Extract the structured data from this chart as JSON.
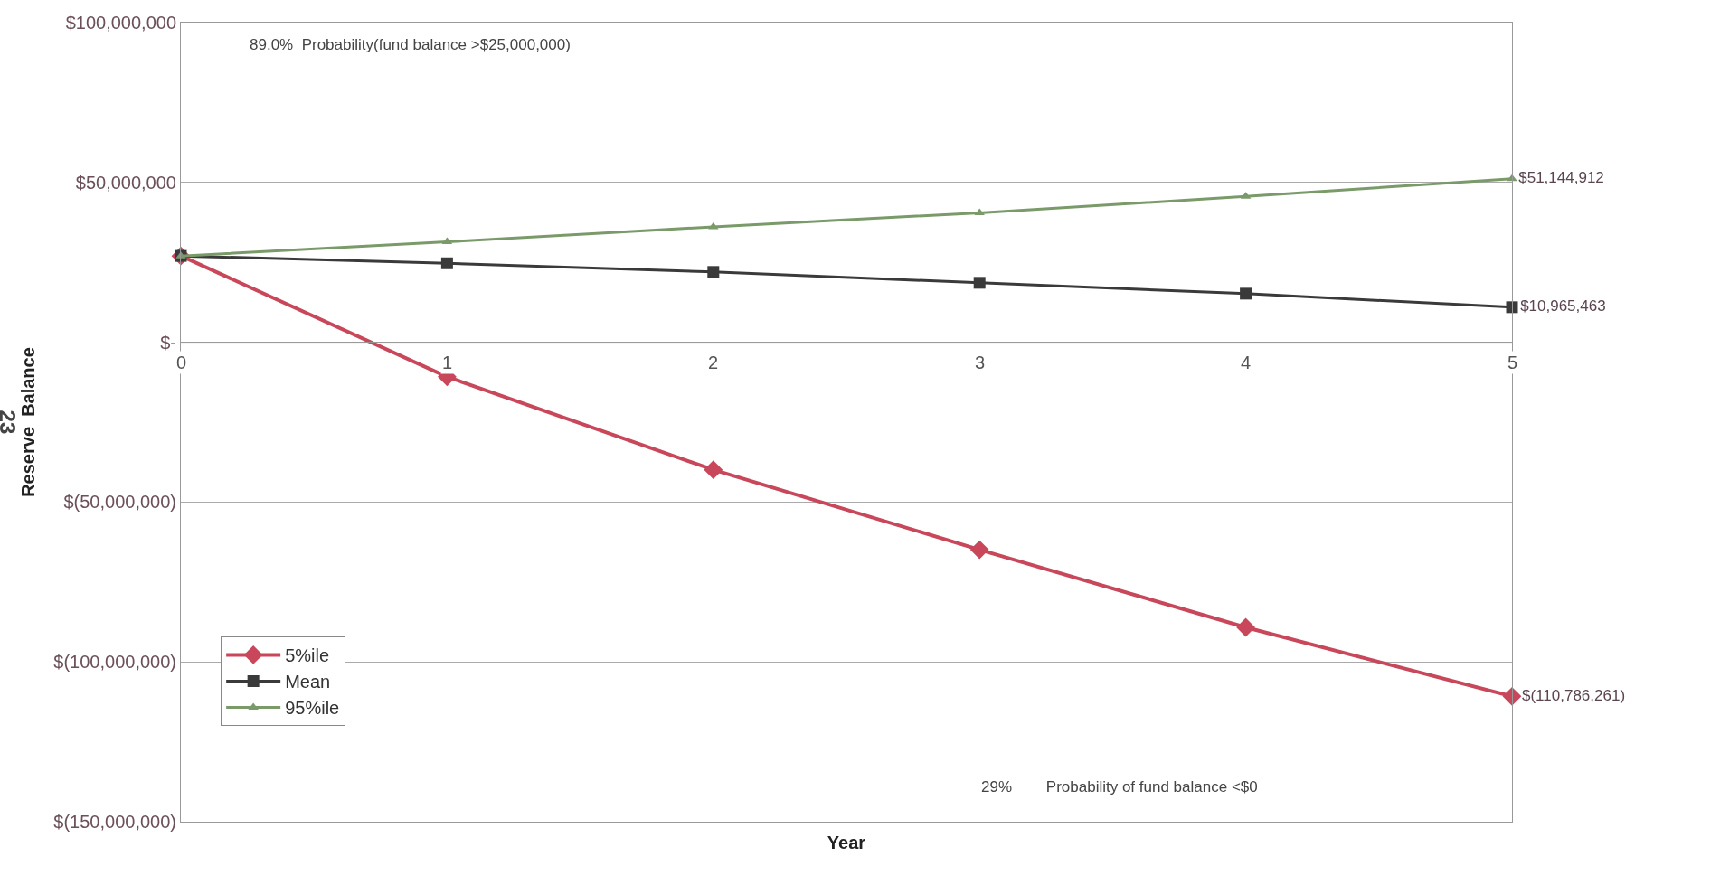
{
  "chart_data": {
    "type": "line",
    "xlabel": "Year",
    "ylabel": "Reserve  Balance",
    "x": [
      0,
      1,
      2,
      3,
      4,
      5
    ],
    "series": [
      {
        "name": "5%ile",
        "color": "#c8475a",
        "marker": "diamond",
        "values": [
          27000000,
          -10800000,
          -39900000,
          -64900000,
          -89200000,
          -110786261
        ],
        "value_labels": [
          null,
          null,
          null,
          null,
          null,
          "$(110,786,261)"
        ]
      },
      {
        "name": "Mean",
        "color": "#3a3a3a",
        "marker": "square",
        "values": [
          27000000,
          24700000,
          22000000,
          18600000,
          15200000,
          10965463
        ],
        "value_labels": [
          null,
          null,
          null,
          null,
          null,
          "$10,965,463"
        ]
      },
      {
        "name": "95%ile",
        "color": "#7a9a6a",
        "marker": "triangle",
        "values": [
          27000000,
          31400000,
          36100000,
          40500000,
          45600000,
          51144912
        ],
        "value_labels": [
          null,
          null,
          null,
          null,
          null,
          "$51,144,912"
        ]
      }
    ],
    "xlim": [
      0,
      5
    ],
    "xticks": [
      0,
      1,
      2,
      3,
      4,
      5
    ],
    "ylim": [
      -150000000,
      100000000
    ],
    "yticks": [
      {
        "value": 100000000,
        "label": "$100,000,000"
      },
      {
        "value": 50000000,
        "label": "$50,000,000"
      },
      {
        "value": 0,
        "label": "$-"
      },
      {
        "value": -50000000,
        "label": "$(50,000,000)"
      },
      {
        "value": -100000000,
        "label": "$(100,000,000)"
      },
      {
        "value": -150000000,
        "label": "$(150,000,000)"
      }
    ],
    "grid": "y",
    "legend": "bottom left",
    "annotations": [
      "89.0%  Probability(fund balance >$25,000,000)",
      "29%        Probability of fund balance <$0",
      "23"
    ]
  }
}
